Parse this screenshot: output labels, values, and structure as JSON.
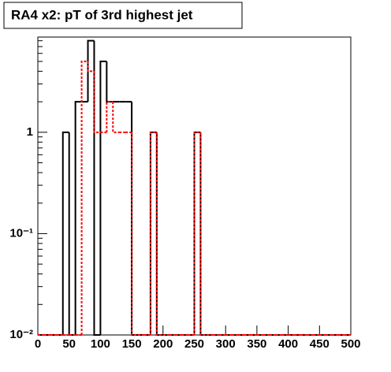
{
  "chart_data": {
    "type": "histogram",
    "title": "RA4 x2: pT of 3rd highest jet",
    "bins": [
      0,
      10,
      20,
      30,
      40,
      50,
      60,
      70,
      80,
      90,
      100,
      110,
      120,
      130,
      140,
      150,
      160,
      170,
      180,
      190,
      200,
      210,
      220,
      230,
      240,
      250,
      260,
      270,
      280,
      290,
      300,
      310,
      320,
      330,
      340,
      350,
      360,
      370,
      380,
      390,
      400,
      410,
      420,
      430,
      440,
      450,
      460,
      470,
      480,
      490,
      500
    ],
    "series": [
      {
        "color": "#000000",
        "values": [
          0,
          0,
          0,
          0,
          1,
          0,
          2,
          2,
          8,
          0,
          5,
          2,
          2,
          2,
          2,
          0,
          0,
          0,
          1,
          0,
          0,
          0,
          0,
          0,
          0,
          1,
          0,
          0,
          0,
          0,
          0,
          0,
          0,
          0,
          0,
          0,
          0,
          0,
          0,
          0,
          0,
          0,
          0,
          0,
          0,
          0,
          0,
          0,
          0,
          0
        ]
      },
      {
        "color": "#ff0000",
        "values": [
          0,
          0,
          0,
          0,
          0,
          0,
          0,
          5,
          4,
          1,
          1,
          2,
          1,
          1,
          1,
          0,
          0,
          0,
          1,
          0,
          0,
          0,
          0,
          0,
          0,
          1,
          0,
          0,
          0,
          0,
          0,
          0,
          0,
          0,
          0,
          0,
          0,
          0,
          0,
          0,
          0,
          0,
          0,
          0,
          0,
          0,
          0,
          0,
          0,
          0
        ]
      }
    ],
    "xlim": [
      0,
      500
    ],
    "xticks": [
      0,
      50,
      100,
      150,
      200,
      250,
      300,
      350,
      400,
      450,
      500
    ],
    "ylim": [
      0.01,
      8.7
    ],
    "log_y": true,
    "yticks": [
      {
        "value": 0.01,
        "label": "10⁻²"
      },
      {
        "value": 0.1,
        "label": "10⁻¹"
      },
      1
    ]
  }
}
